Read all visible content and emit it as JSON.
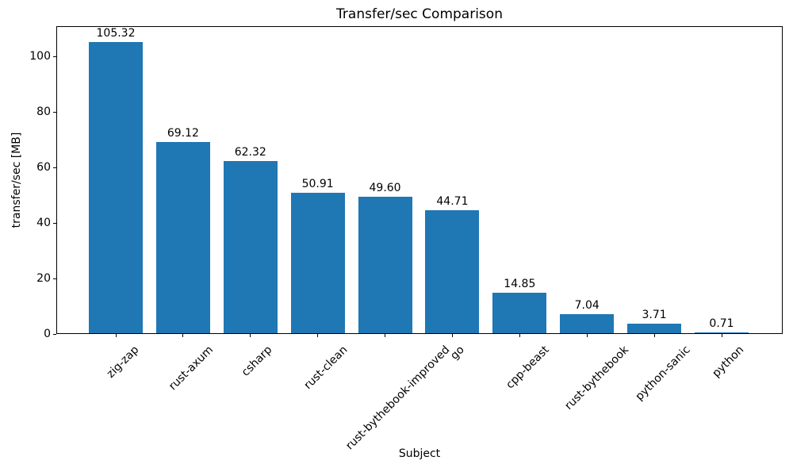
{
  "chart_data": {
    "type": "bar",
    "title": "Transfer/sec Comparison",
    "xlabel": "Subject",
    "ylabel": "transfer/sec [MB]",
    "categories": [
      "zig-zap",
      "rust-axum",
      "csharp",
      "rust-clean",
      "rust-bythebook-improved",
      "go",
      "cpp-beast",
      "rust-bythebook",
      "python-sanic",
      "python"
    ],
    "values": [
      105.32,
      69.12,
      62.32,
      50.91,
      49.6,
      44.71,
      14.85,
      7.04,
      3.71,
      0.71
    ],
    "value_labels": [
      "105.32",
      "69.12",
      "62.32",
      "50.91",
      "49.60",
      "44.71",
      "14.85",
      "7.04",
      "3.71",
      "0.71"
    ],
    "yticks": [
      0,
      20,
      40,
      60,
      80,
      100
    ],
    "ylim": [
      0,
      111
    ],
    "x_tick_rotation": 45,
    "grid": false,
    "legend": false,
    "bar_color": "#1f77b4",
    "background_color": "#ffffff",
    "text_color": "#000000"
  }
}
